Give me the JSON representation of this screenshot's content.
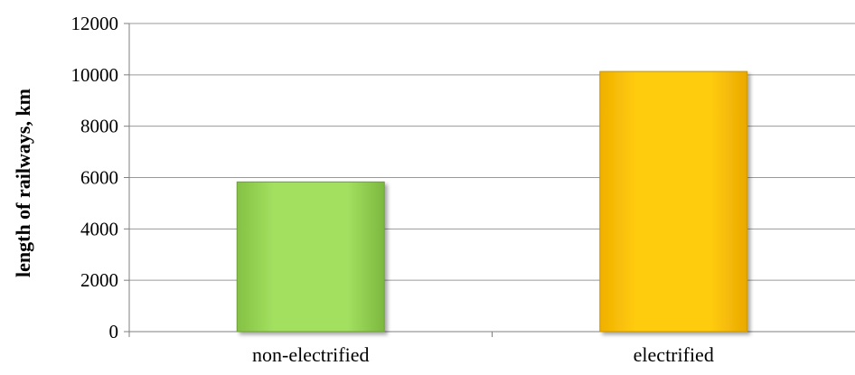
{
  "chart_data": {
    "type": "bar",
    "categories": [
      "non-electrified",
      "electrified"
    ],
    "values": [
      5830,
      10130
    ],
    "title": "",
    "xlabel": "",
    "ylabel": "length of railways,  km",
    "ylim": [
      0,
      12000
    ],
    "yticks": [
      0,
      2000,
      4000,
      6000,
      8000,
      10000,
      12000
    ],
    "grid": true,
    "legend": "none",
    "bar_colors": [
      "#9bd85a",
      "#ffc400"
    ],
    "bar_edge_colors": [
      "#6f9e3a",
      "#c99400"
    ],
    "gridline_color": "#9a9a9a",
    "axis_color": "#7f7f7f"
  }
}
